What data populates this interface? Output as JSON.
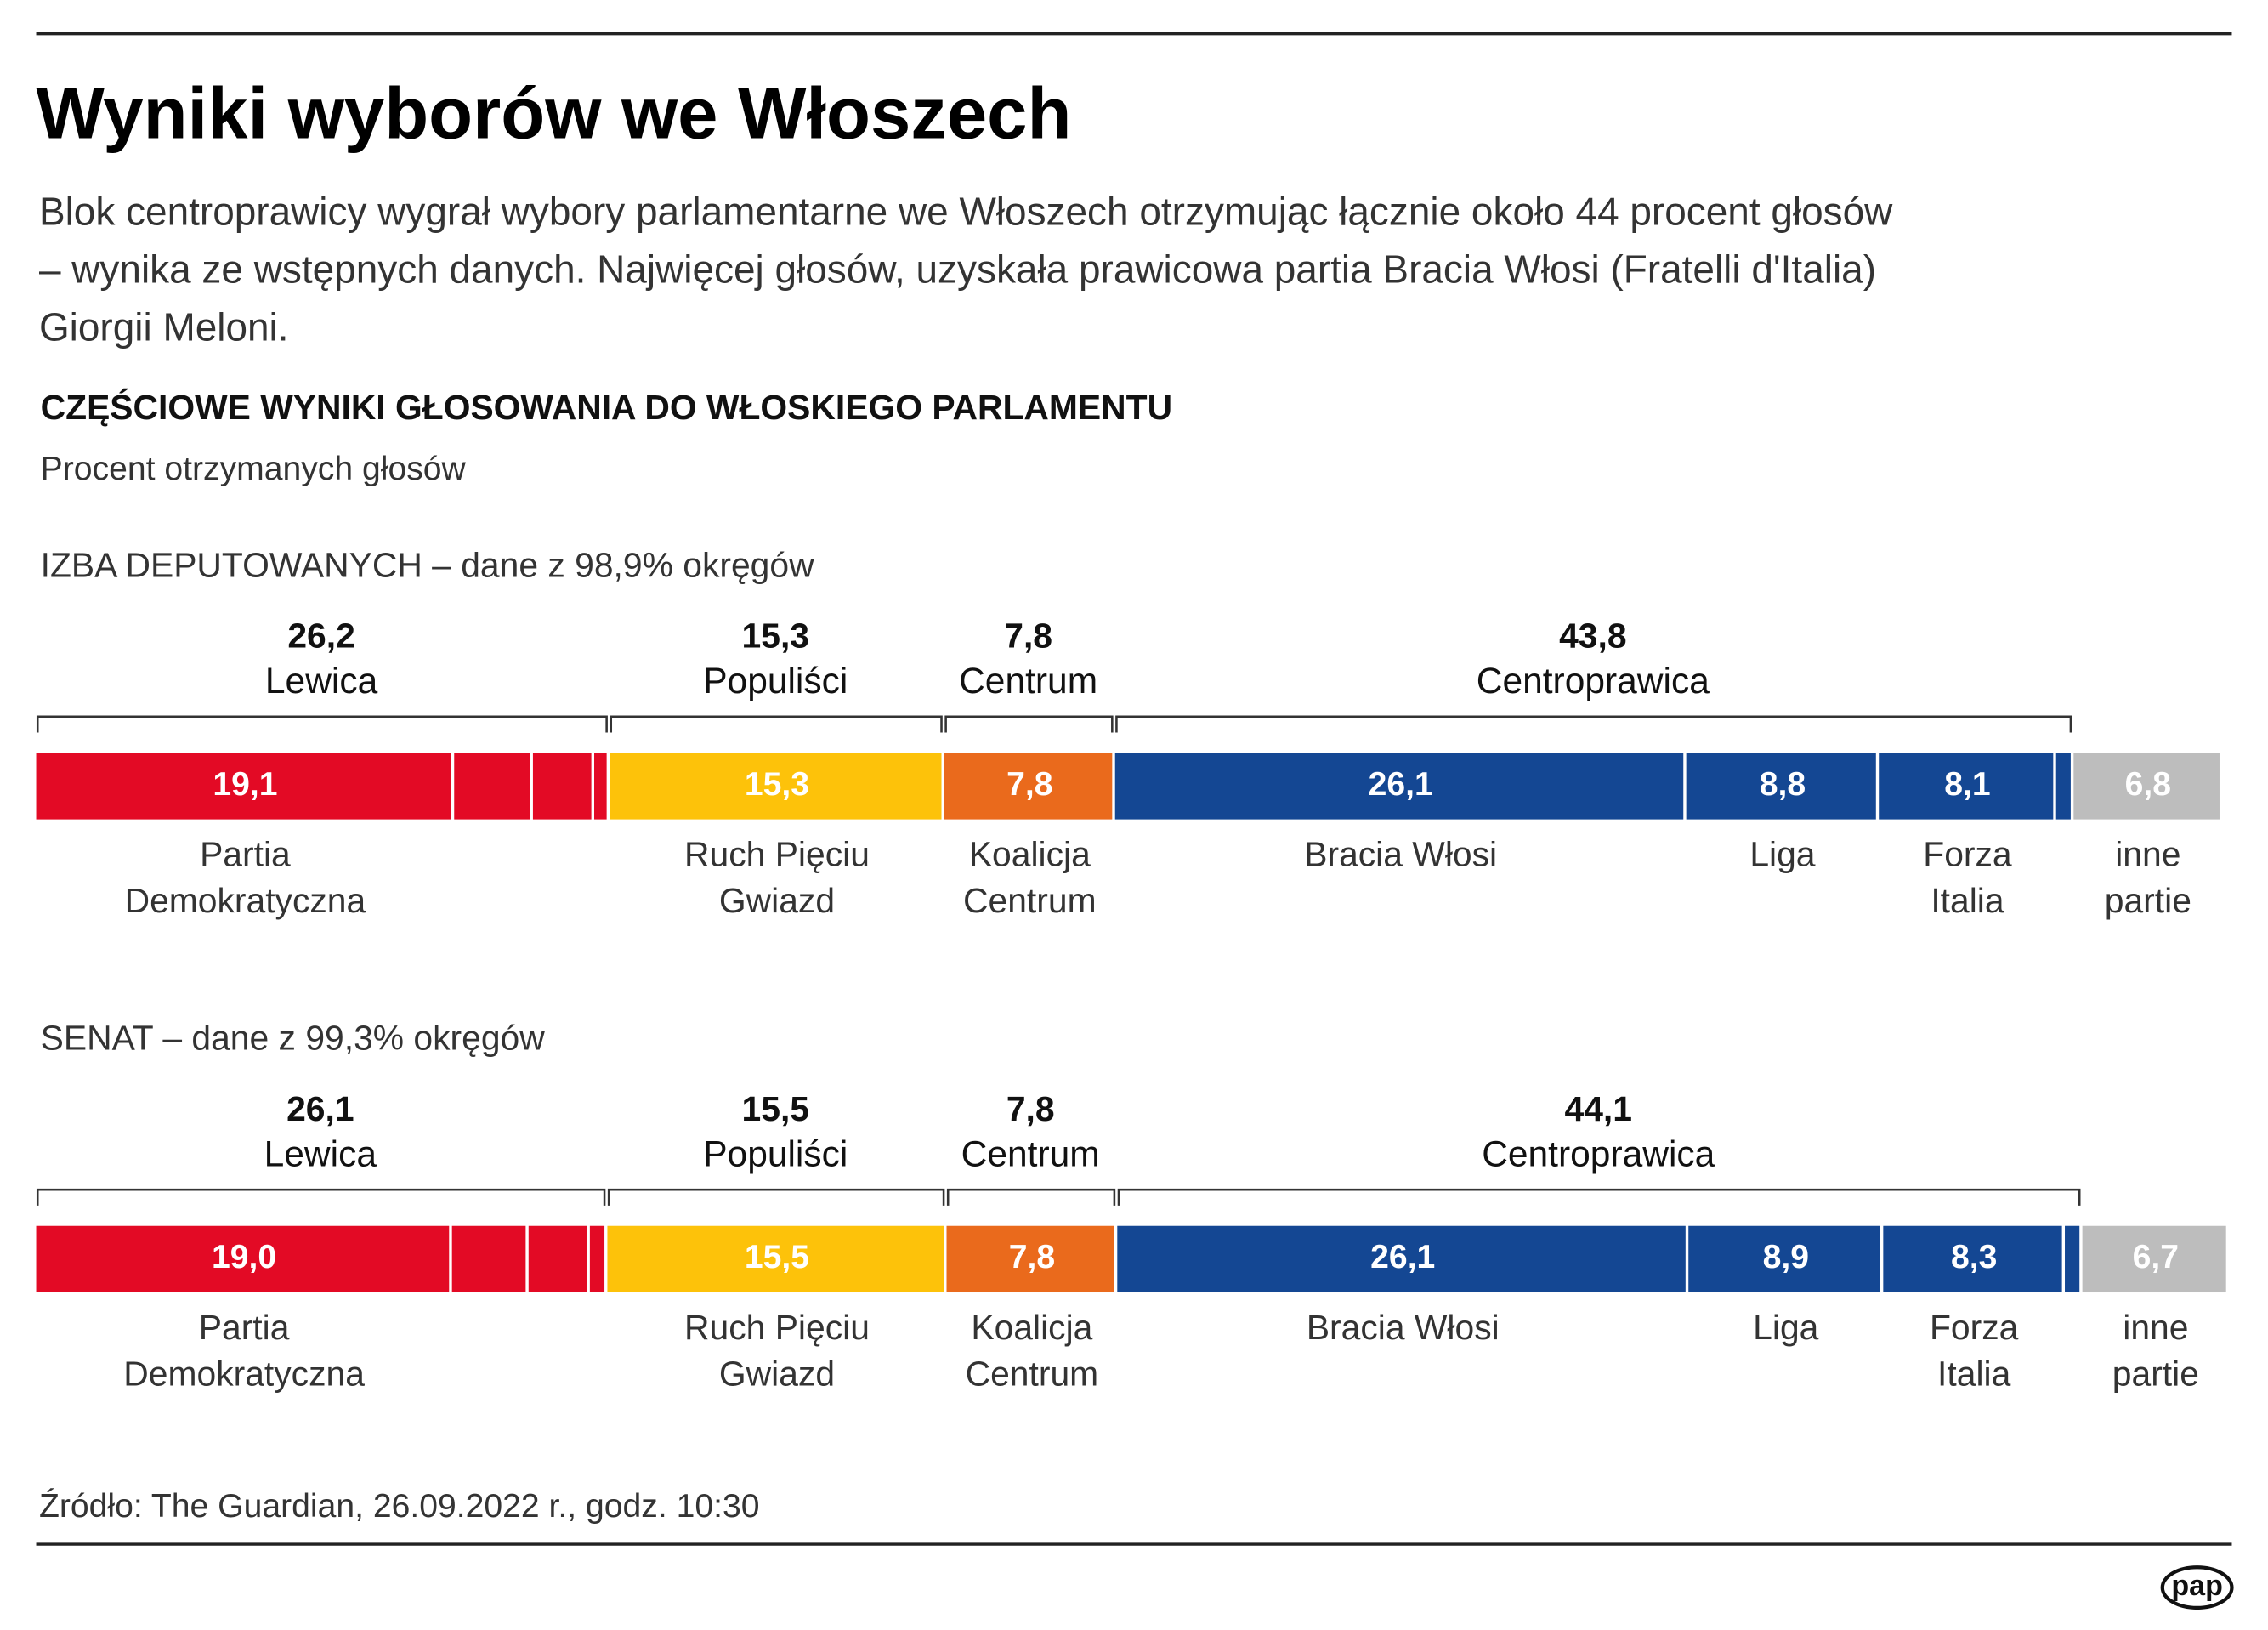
{
  "title": "Wyniki wyborów we Włoszech",
  "description": [
    "Blok centroprawicy wygrał wybory parlamentarne we Włoszech otrzymując łącznie około 44 procent głosów",
    "– wynika ze wstępnych danych. Najwięcej głosów, uzyskała prawicowa partia Bracia Włosi (Fratelli d'Italia)",
    "Giorgii Meloni."
  ],
  "heading": "CZĘŚCIOWE WYNIKI GŁOSOWANIA DO WŁOSKIEGO PARLAMENTU",
  "subheading": "Procent otrzymanych głosów",
  "source": "Źródło: The Guardian, 26.09.2022 r., godz. 10:30",
  "logo": "pap",
  "chart_data": [
    {
      "type": "stacked_bar",
      "title": "IZBA DEPUTOWANYCH – dane z 98,9% okręgów",
      "groups": [
        {
          "name": "Lewica",
          "value": 26.2,
          "value_label": "26,2",
          "color": "#e30a25",
          "segments": [
            {
              "name": [
                "Partia",
                "Demokratyczna"
              ],
              "value": 19.1,
              "value_label": "19,1"
            },
            {
              "name": null,
              "value": 3.6
            },
            {
              "name": null,
              "value": 2.8
            },
            {
              "name": null,
              "value": 0.7
            }
          ]
        },
        {
          "name": "Populiści",
          "value": 15.3,
          "value_label": "15,3",
          "color": "#fdc20a",
          "segments": [
            {
              "name": [
                "Ruch Pięciu",
                "Gwiazd"
              ],
              "value": 15.3,
              "value_label": "15,3"
            }
          ]
        },
        {
          "name": "Centrum",
          "value": 7.8,
          "value_label": "7,8",
          "color": "#ea6a1c",
          "segments": [
            {
              "name": [
                "Koalicja",
                "Centrum"
              ],
              "value": 7.8,
              "value_label": "7,8"
            }
          ]
        },
        {
          "name": "Centroprawica",
          "value": 43.8,
          "value_label": "43,8",
          "color": "#144793",
          "segments": [
            {
              "name": [
                "Bracia Włosi"
              ],
              "value": 26.1,
              "value_label": "26,1"
            },
            {
              "name": [
                "Liga"
              ],
              "value": 8.8,
              "value_label": "8,8"
            },
            {
              "name": [
                "Forza",
                "Italia"
              ],
              "value": 8.1,
              "value_label": "8,1"
            },
            {
              "name": null,
              "value": 0.8
            }
          ]
        }
      ],
      "other": {
        "name": [
          "inne",
          "partie"
        ],
        "value": 6.8,
        "value_label": "6,8",
        "color": "#bdbdbd"
      }
    },
    {
      "type": "stacked_bar",
      "title": "SENAT – dane z 99,3% okręgów",
      "groups": [
        {
          "name": "Lewica",
          "value": 26.1,
          "value_label": "26,1",
          "color": "#e30a25",
          "segments": [
            {
              "name": [
                "Partia",
                "Demokratyczna"
              ],
              "value": 19.0,
              "value_label": "19,0"
            },
            {
              "name": null,
              "value": 3.5
            },
            {
              "name": null,
              "value": 2.8
            },
            {
              "name": null,
              "value": 0.8
            }
          ]
        },
        {
          "name": "Populiści",
          "value": 15.5,
          "value_label": "15,5",
          "color": "#fdc20a",
          "segments": [
            {
              "name": [
                "Ruch Pięciu",
                "Gwiazd"
              ],
              "value": 15.5,
              "value_label": "15,5"
            }
          ]
        },
        {
          "name": "Centrum",
          "value": 7.8,
          "value_label": "7,8",
          "color": "#ea6a1c",
          "segments": [
            {
              "name": [
                "Koalicja",
                "Centrum"
              ],
              "value": 7.8,
              "value_label": "7,8"
            }
          ]
        },
        {
          "name": "Centroprawica",
          "value": 44.1,
          "value_label": "44,1",
          "color": "#144793",
          "segments": [
            {
              "name": [
                "Bracia Włosi"
              ],
              "value": 26.1,
              "value_label": "26,1"
            },
            {
              "name": [
                "Liga"
              ],
              "value": 8.9,
              "value_label": "8,9"
            },
            {
              "name": [
                "Forza",
                "Italia"
              ],
              "value": 8.3,
              "value_label": "8,3"
            },
            {
              "name": null,
              "value": 0.8
            }
          ]
        }
      ],
      "other": {
        "name": [
          "inne",
          "partie"
        ],
        "value": 6.7,
        "value_label": "6,7",
        "color": "#bdbdbd"
      }
    }
  ]
}
